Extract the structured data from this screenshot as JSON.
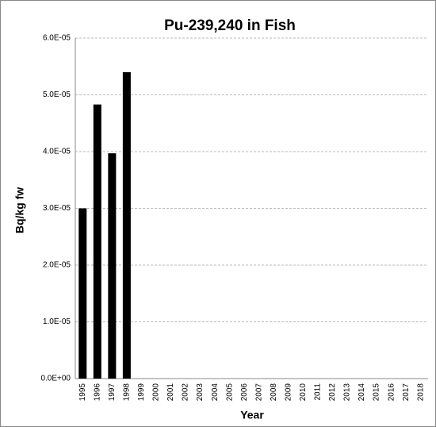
{
  "chart_data": {
    "type": "bar",
    "title": "Pu-239,240 in Fish",
    "x_label": "Year",
    "y_label": "Bq/kg fw",
    "categories": [
      "1995",
      "1996",
      "1997",
      "1998",
      "1999",
      "2000",
      "2001",
      "2002",
      "2003",
      "2004",
      "2005",
      "2006",
      "2007",
      "2008",
      "2009",
      "2010",
      "2011",
      "2012",
      "2013",
      "2014",
      "2015",
      "2016",
      "2017",
      "2018"
    ],
    "values": [
      3e-05,
      4.83e-05,
      3.97e-05,
      5.4e-05,
      null,
      null,
      null,
      null,
      null,
      null,
      null,
      null,
      null,
      null,
      null,
      null,
      null,
      null,
      null,
      null,
      null,
      null,
      null,
      null
    ],
    "color": "#000000",
    "ylim": [
      0,
      6e-05
    ],
    "yticks": [
      {
        "value": 0,
        "label": "0.0E+00"
      },
      {
        "value": 1e-05,
        "label": "1.0E-05"
      },
      {
        "value": 2e-05,
        "label": "2.0E-05"
      },
      {
        "value": 3e-05,
        "label": "3.0E-05"
      },
      {
        "value": 4e-05,
        "label": "4.0E-05"
      },
      {
        "value": 5e-05,
        "label": "5.0E-05"
      },
      {
        "value": 6e-05,
        "label": "6.0E-05"
      }
    ],
    "grid": true
  }
}
